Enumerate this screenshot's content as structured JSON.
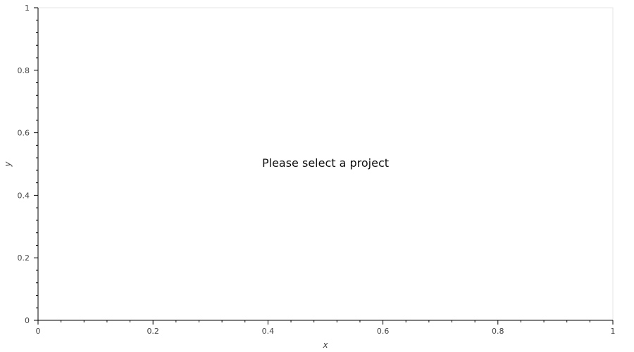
{
  "chart_data": {
    "type": "scatter",
    "title": "",
    "xlabel": "x",
    "ylabel": "y",
    "xlim": [
      0,
      1
    ],
    "ylim": [
      0,
      1
    ],
    "x_ticks": [
      0,
      0.2,
      0.4,
      0.6,
      0.8,
      1
    ],
    "x_tick_labels": [
      "0",
      "0.2",
      "0.4",
      "0.6",
      "0.8",
      "1"
    ],
    "y_ticks": [
      0,
      0.2,
      0.4,
      0.6,
      0.8,
      1
    ],
    "y_tick_labels": [
      "0",
      "0.2",
      "0.4",
      "0.6",
      "0.8",
      "1"
    ],
    "grid": false,
    "series": [],
    "message": "Please select a project"
  },
  "colors": {
    "axis": "#000000",
    "frame": "#e5e5e5",
    "text": "#444444"
  }
}
